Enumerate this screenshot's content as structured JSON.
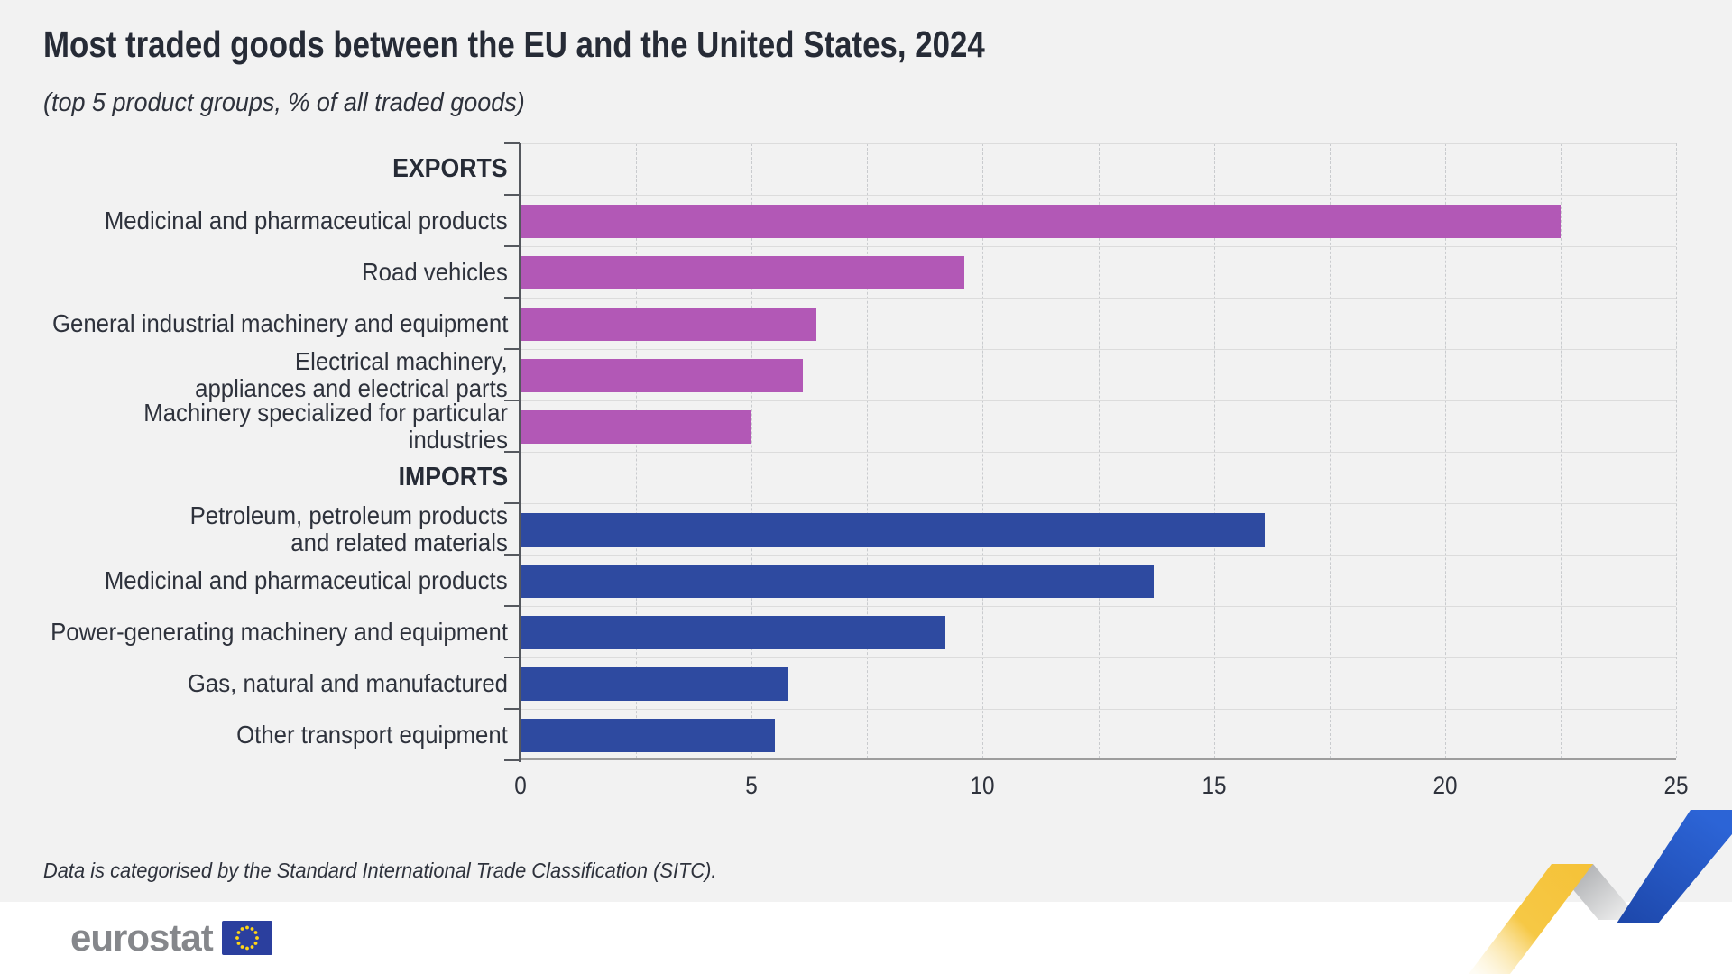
{
  "page": {
    "title": "Most traded goods between the EU and the United States, 2024",
    "subtitle": "(top 5 product groups, % of all traded goods)",
    "footnote": "Data is categorised by the Standard International Trade Classification (SITC).",
    "brand": "eurostat"
  },
  "colors": {
    "background": "#f2f2f2",
    "export_bar": "#b258b6",
    "import_bar": "#2e4aa0",
    "gridline": "#c9cbce",
    "row_separator": "#dcdcdc",
    "axis": "#55585e",
    "eurostat_gray": "#85878b",
    "eu_flag_blue": "#2b3f9e",
    "star_yellow": "#ffd617",
    "ribbon_yellow": "#f6c63d",
    "ribbon_silver": "#b9babc",
    "ribbon_blue": "#2257c9"
  },
  "chart_data": {
    "type": "bar",
    "orientation": "horizontal",
    "title": "Most traded goods between the EU and the United States, 2024",
    "subtitle": "(top 5 product groups, % of all traded goods)",
    "xlabel": "% of all traded goods",
    "ylabel": "",
    "xlim": [
      0,
      25
    ],
    "x_ticks": [
      0,
      5,
      10,
      15,
      20,
      25
    ],
    "x_tick_labels": [
      "0",
      "5",
      "10",
      "15",
      "20",
      "25"
    ],
    "gridline_step": 2.5,
    "grid": true,
    "legend": false,
    "groups": [
      {
        "name": "EXPORTS",
        "color": "#b258b6",
        "items": [
          {
            "label": "Medicinal and pharmaceutical products",
            "value": 22.5
          },
          {
            "label": "Road vehicles",
            "value": 9.6
          },
          {
            "label": "General industrial machinery and equipment",
            "value": 6.4
          },
          {
            "label": "Electrical machinery,\nappliances and electrical parts",
            "value": 6.1
          },
          {
            "label": "Machinery specialized for particular industries",
            "value": 5.0
          }
        ]
      },
      {
        "name": "IMPORTS",
        "color": "#2e4aa0",
        "items": [
          {
            "label": "Petroleum, petroleum products\nand related materials",
            "value": 16.1
          },
          {
            "label": "Medicinal and pharmaceutical products",
            "value": 13.7
          },
          {
            "label": "Power-generating machinery and equipment",
            "value": 9.2
          },
          {
            "label": "Gas, natural and manufactured",
            "value": 5.8
          },
          {
            "label": "Other transport equipment",
            "value": 5.5
          }
        ]
      }
    ]
  }
}
